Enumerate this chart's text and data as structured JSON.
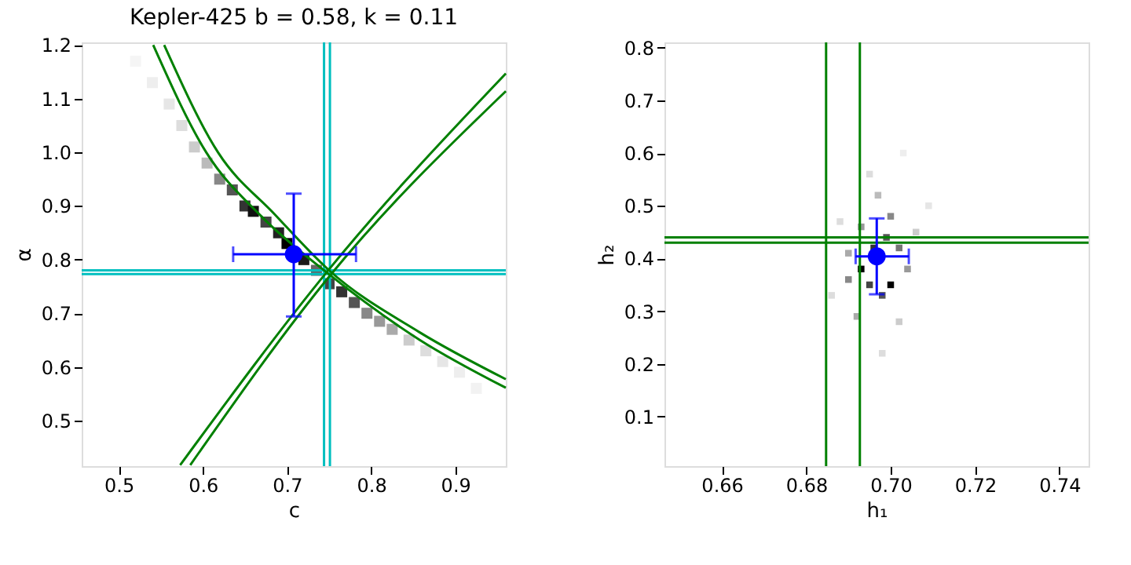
{
  "chart_data": [
    {
      "type": "scatter",
      "title": "Kepler-425  b = 0.58, k = 0.11",
      "xlabel": "c",
      "ylabel": "α",
      "xlim": [
        0.456,
        0.96
      ],
      "ylim": [
        0.415,
        1.205
      ],
      "xticks": [
        0.5,
        0.6,
        0.7,
        0.8,
        0.9
      ],
      "yticks": [
        0.5,
        0.6,
        0.7,
        0.8,
        0.9,
        {
          "value": 1.0,
          "label": "1.0"
        },
        1.1,
        1.2
      ],
      "grid": false,
      "series": [
        {
          "marker": "square",
          "x": [
            0.52,
            0.54,
            0.56,
            0.575,
            0.59,
            0.605,
            0.62,
            0.635,
            0.65,
            0.66,
            0.675,
            0.69,
            0.7,
            0.72,
            0.735,
            0.75,
            0.765,
            0.78,
            0.795,
            0.81,
            0.825,
            0.845,
            0.865,
            0.885,
            0.905,
            0.925
          ],
          "values": [
            1.17,
            1.13,
            1.09,
            1.05,
            1.01,
            0.98,
            0.95,
            0.93,
            0.9,
            0.89,
            0.87,
            0.85,
            0.83,
            0.8,
            0.78,
            0.755,
            0.74,
            0.72,
            0.7,
            0.685,
            0.67,
            0.65,
            0.63,
            0.61,
            0.59,
            0.56
          ],
          "colors": [
            "#f5f5f5",
            "#eeeeee",
            "#e6e6e6",
            "#dddddd",
            "#cccccc",
            "#bbbbbb",
            "#888888",
            "#555555",
            "#333333",
            "#111111",
            "#444444",
            "#222222",
            "#000000",
            "#1a1a1a",
            "#666666",
            "#444444",
            "#333333",
            "#555555",
            "#888888",
            "#999999",
            "#aaaaaa",
            "#cccccc",
            "#dddddd",
            "#e6e6e6",
            "#eeeeee",
            "#f2f2f2"
          ]
        },
        {
          "type": "line",
          "color": "#008000",
          "x": [
            0.541,
            0.604,
            0.67,
            0.748,
            0.857,
            0.96
          ],
          "values": [
            1.2,
            1.0,
            0.88,
            0.775,
            0.651,
            0.561
          ]
        },
        {
          "type": "line",
          "color": "#008000",
          "x": [
            0.554,
            0.618,
            0.685,
            0.75,
            0.857,
            0.96
          ],
          "values": [
            1.2,
            1.0,
            0.885,
            0.78,
            0.665,
            0.577
          ]
        },
        {
          "type": "line",
          "color": "#008000",
          "x": [
            0.573,
            0.75,
            0.96
          ],
          "values": [
            0.417,
            0.782,
            1.147
          ]
        },
        {
          "type": "line",
          "color": "#008000",
          "x": [
            0.585,
            0.752,
            0.96
          ],
          "values": [
            0.417,
            0.772,
            1.114
          ]
        },
        {
          "marker": "circle",
          "color": "#0000ff",
          "x": [
            0.708
          ],
          "values": [
            0.81
          ],
          "errors": [
            [
              0.694,
              0.923
            ]
          ],
          "xerrors": [
            [
              0.636,
              0.782
            ]
          ]
        }
      ],
      "ref_lines": [
        {
          "axis": "x",
          "value": 0.744,
          "color": "#00bfbf"
        },
        {
          "axis": "x",
          "value": 0.751,
          "color": "#00bfbf"
        },
        {
          "axis": "y",
          "value": 0.773,
          "color": "#00bfbf"
        },
        {
          "axis": "y",
          "value": 0.78,
          "color": "#00bfbf"
        }
      ]
    },
    {
      "type": "scatter",
      "xlabel": "h₁",
      "ylabel": "h₂",
      "xlim": [
        0.6464,
        0.7469
      ],
      "ylim": [
        0.006,
        0.81
      ],
      "xticks": [
        0.66,
        0.68,
        {
          "value": 0.7,
          "label": "0.70"
        },
        0.72,
        0.74
      ],
      "yticks": [
        0.1,
        0.2,
        0.3,
        0.4,
        0.5,
        0.6,
        0.7,
        0.8
      ],
      "grid": false,
      "series": [
        {
          "marker": "square",
          "x": [
            0.69,
            0.693,
            0.695,
            0.698,
            0.7,
            0.696,
            0.699,
            0.702,
            0.693,
            0.7,
            0.69,
            0.704,
            0.697,
            0.692,
            0.702,
            0.688,
            0.706,
            0.695,
            0.703,
            0.686,
            0.698,
            0.709
          ],
          "values": [
            0.36,
            0.38,
            0.35,
            0.33,
            0.35,
            0.42,
            0.44,
            0.42,
            0.46,
            0.48,
            0.41,
            0.38,
            0.52,
            0.29,
            0.28,
            0.47,
            0.45,
            0.56,
            0.6,
            0.33,
            0.22,
            0.5
          ],
          "colors": [
            "#888888",
            "#000000",
            "#444444",
            "#555555",
            "#000000",
            "#333333",
            "#555555",
            "#777777",
            "#999999",
            "#888888",
            "#aaaaaa",
            "#999999",
            "#bbbbbb",
            "#aaaaaa",
            "#cccccc",
            "#dddddd",
            "#cccccc",
            "#dddddd",
            "#eeeeee",
            "#dddddd",
            "#dddddd",
            "#e6e6e6"
          ]
        },
        {
          "marker": "circle",
          "color": "#0000ff",
          "x": [
            0.6967
          ],
          "values": [
            0.404
          ],
          "errors": [
            [
              0.332,
              0.476
            ]
          ],
          "xerrors": [
            [
              0.6917,
              0.7043
            ]
          ]
        }
      ],
      "ref_lines": [
        {
          "axis": "x",
          "value": 0.6847,
          "color": "#008000"
        },
        {
          "axis": "x",
          "value": 0.6927,
          "color": "#008000"
        },
        {
          "axis": "y",
          "value": 0.43,
          "color": "#008000"
        },
        {
          "axis": "y",
          "value": 0.44,
          "color": "#008000"
        }
      ]
    }
  ]
}
